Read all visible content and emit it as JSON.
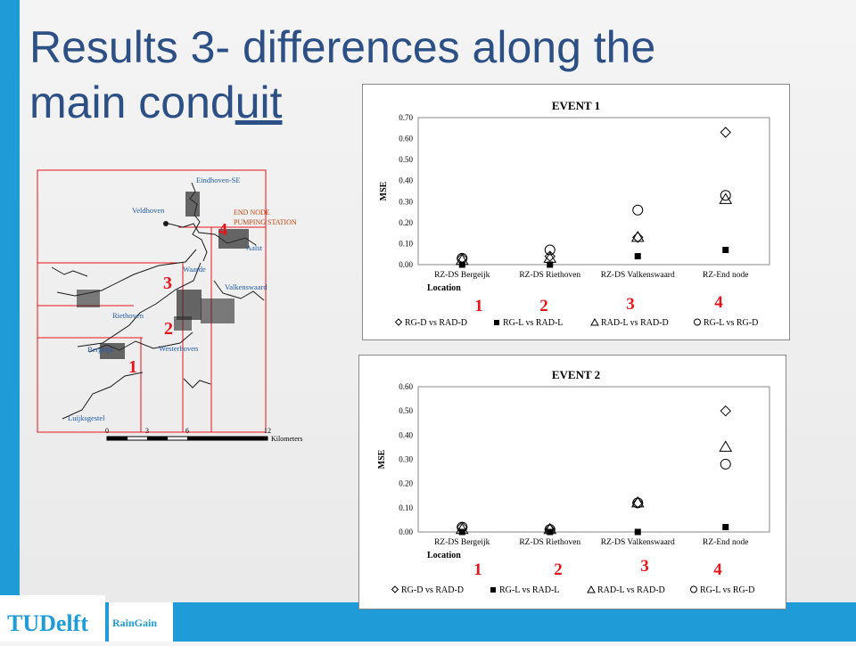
{
  "slide": {
    "title_line1": "Results 3- differences along the",
    "title_line2_pre": "main cond",
    "title_line2_underlined": "uit"
  },
  "map": {
    "labels": {
      "eindhoven": "Eindhoven-SE",
      "veldhoven": "Veldhoven",
      "end_node": "END NODE",
      "pumping": "PUMPING STATION",
      "aalst": "Aalst",
      "waarde": "Waarde",
      "valkenswaard": "Valkenswaard",
      "riethoven": "Riethoven",
      "westerhoven": "Westerhoven",
      "bergeijk": "Bergeijk",
      "luijksgestel": "Luijksgestel"
    },
    "numbers": [
      "1",
      "2",
      "3",
      "4"
    ],
    "scale": {
      "ticks": [
        "0",
        "3",
        "6",
        "12"
      ],
      "unit": "Kilometers"
    },
    "colors": {
      "network": "#1a1a1a",
      "number": "#e8131b",
      "end_node_text": "#c2410c",
      "town_text": "#1f5aa8"
    }
  },
  "chart_data": [
    {
      "type": "scatter",
      "title": "EVENT 1",
      "ylabel": "MSE",
      "xlabel": "Location",
      "categories": [
        "RZ-DS Bergeijk",
        "RZ-DS Riethoven",
        "RZ-DS Valkenswaard",
        "RZ-End node"
      ],
      "yticks": [
        "0.00",
        "0.10",
        "0.20",
        "0.30",
        "0.40",
        "0.50",
        "0.60",
        "0.70"
      ],
      "ylim": [
        0,
        0.7
      ],
      "location_numbers": [
        "1",
        "2",
        "3",
        "4"
      ],
      "series": [
        {
          "name": "RG-D vs RAD-D",
          "marker": "diamond",
          "values": [
            0.03,
            0.04,
            0.13,
            0.63
          ]
        },
        {
          "name": "RG-L vs RAD-L",
          "marker": "square",
          "values": [
            0.0,
            0.0,
            0.04,
            0.07
          ]
        },
        {
          "name": "RAD-L vs RAD-D",
          "marker": "triangle",
          "values": [
            0.02,
            0.03,
            0.13,
            0.31
          ]
        },
        {
          "name": "RG-L vs RG-D",
          "marker": "circle",
          "values": [
            0.03,
            0.07,
            0.26,
            0.33
          ]
        }
      ],
      "legend_position": "bottom"
    },
    {
      "type": "scatter",
      "title": "EVENT 2",
      "ylabel": "MSE",
      "xlabel": "Location",
      "categories": [
        "RZ-DS Bergeijk",
        "RZ-DS Riethoven",
        "RZ-DS Valkenswaard",
        "RZ-End node"
      ],
      "yticks": [
        "0.00",
        "0.10",
        "0.20",
        "0.30",
        "0.40",
        "0.50",
        "0.60"
      ],
      "ylim": [
        0,
        0.6
      ],
      "location_numbers": [
        "1",
        "2",
        "3",
        "4"
      ],
      "series": [
        {
          "name": "RG-D vs RAD-D",
          "marker": "diamond",
          "values": [
            0.02,
            0.01,
            0.12,
            0.5
          ]
        },
        {
          "name": "RG-L vs RAD-L",
          "marker": "square",
          "values": [
            0.0,
            0.0,
            0.0,
            0.02
          ]
        },
        {
          "name": "RAD-L vs RAD-D",
          "marker": "triangle",
          "values": [
            0.01,
            0.01,
            0.12,
            0.35
          ]
        },
        {
          "name": "RG-L vs RG-D",
          "marker": "circle",
          "values": [
            0.02,
            0.01,
            0.12,
            0.28
          ]
        }
      ],
      "legend_position": "bottom"
    }
  ],
  "chart_colors": {
    "marker": "#000000",
    "number": "#e8131b",
    "axis": "#8a8a8a"
  },
  "footer": {
    "tudelft_logo_text": "TUDelft",
    "raingain_logo_text": "RainGain"
  }
}
